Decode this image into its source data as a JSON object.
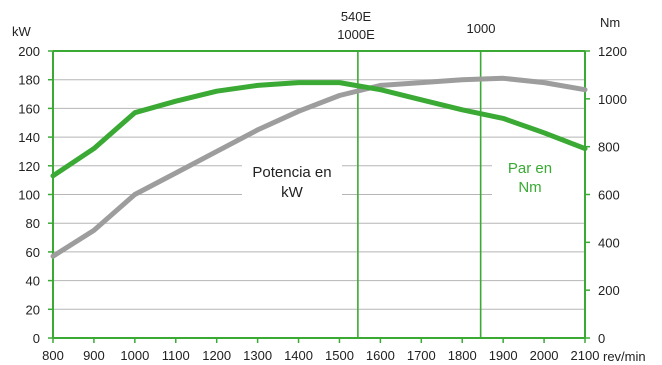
{
  "chart_data": {
    "type": "line",
    "x": [
      800,
      900,
      1000,
      1100,
      1200,
      1300,
      1400,
      1500,
      1600,
      1700,
      1800,
      1900,
      2000,
      2100
    ],
    "xlim": [
      800,
      2100
    ],
    "xunit": "rev/min",
    "left_axis": {
      "unit": "kW",
      "ylim": [
        0,
        200
      ],
      "ticks": [
        0,
        20,
        40,
        60,
        80,
        100,
        120,
        140,
        160,
        180,
        200
      ]
    },
    "right_axis": {
      "unit": "Nm",
      "ylim": [
        0,
        1200
      ],
      "ticks": [
        0,
        200,
        400,
        600,
        800,
        1000,
        1200
      ],
      "color": "#3aaa35"
    },
    "series": [
      {
        "name": "Potencia en kW",
        "axis": "left",
        "color": "#9d9d9d",
        "x": [
          800,
          900,
          1000,
          1100,
          1200,
          1300,
          1400,
          1500,
          1600,
          1700,
          1800,
          1900,
          2000,
          2100
        ],
        "values": [
          57,
          75,
          100,
          115,
          130,
          145,
          158,
          169,
          176,
          178,
          180,
          181,
          178,
          173
        ]
      },
      {
        "name": "Par en Nm",
        "axis": "right",
        "color": "#3aaa35",
        "x": [
          800,
          900,
          1000,
          1100,
          1200,
          1300,
          1400,
          1500,
          1600,
          1700,
          1800,
          1900,
          2000,
          2100
        ],
        "values": [
          678,
          792,
          942,
          990,
          1032,
          1056,
          1068,
          1068,
          1038,
          996,
          954,
          918,
          858,
          792
        ]
      }
    ],
    "markers": [
      {
        "x": 1545,
        "label_line1": "540E",
        "label_line2": "1000E"
      },
      {
        "x": 1845,
        "label_line1": "1000",
        "label_line2": ""
      }
    ],
    "labels": {
      "potencia_line1": "Potencia en",
      "potencia_line2": "kW",
      "par_line1": "Par en",
      "par_line2": "Nm"
    },
    "grid": true,
    "colors": {
      "grid": "#b5b5b5",
      "axis": "#3aaa35",
      "text": "#222222"
    }
  }
}
